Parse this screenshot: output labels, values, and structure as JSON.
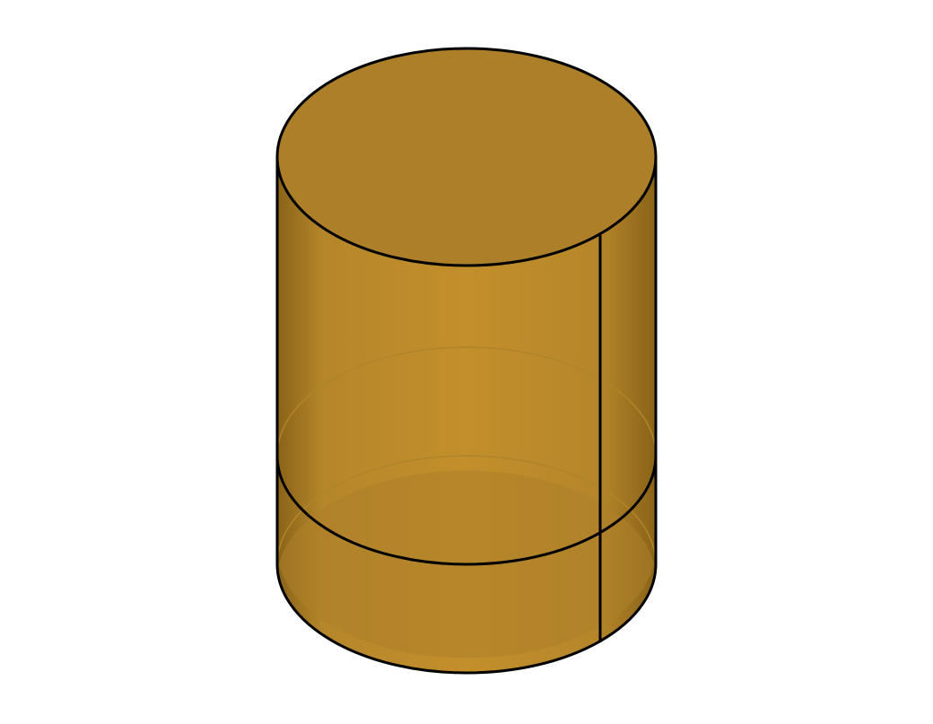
{
  "scene": {
    "background": "#ffffff",
    "object": "cylinder",
    "colors": {
      "body_light": "#c38f2b",
      "body_mid": "#b5862a",
      "body_dark": "#8a6318",
      "cap": "#ad7f29",
      "edge": "#000000",
      "hidden_edge": "#b0842a"
    }
  }
}
